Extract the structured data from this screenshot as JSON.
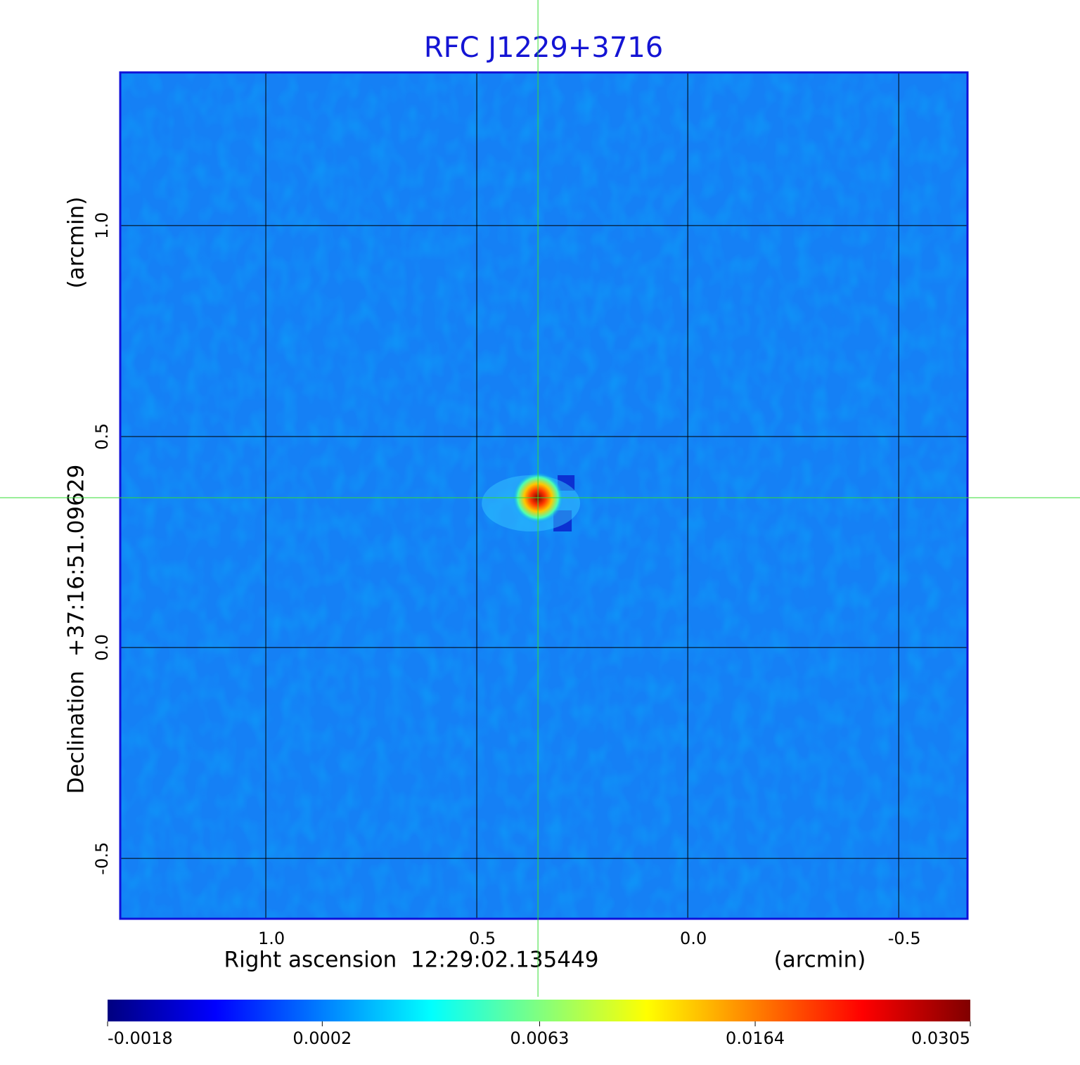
{
  "chart_data": {
    "type": "image",
    "title": "RFC J1229+3716",
    "x_label": "Right ascension  12:29:02.135449",
    "x_unit": "(arcmin)",
    "y_label": "Declination  +37:16:51.09629",
    "y_unit": "(arcmin)",
    "xlim": [
      1.345,
      -0.663
    ],
    "ylim": [
      -0.643,
      1.363
    ],
    "xticks": [
      {
        "value": 1,
        "label": "1.0"
      },
      0.5,
      {
        "value": 0,
        "label": "0.0"
      },
      -0.5
    ],
    "yticks": [
      {
        "value": 1,
        "label": "1.0"
      },
      0.5,
      {
        "value": 0,
        "label": "0.0"
      },
      -0.5
    ],
    "grid": true,
    "source": {
      "x": 0.355,
      "y": 0.355,
      "peak": 0.0305
    },
    "colorbar": {
      "colormap": "jet",
      "scale": "sqrt",
      "lim": [
        -0.0018,
        0.0305
      ],
      "ticks": [
        -0.0018,
        0.0002,
        0.0063,
        0.0164,
        0.0305
      ]
    }
  }
}
